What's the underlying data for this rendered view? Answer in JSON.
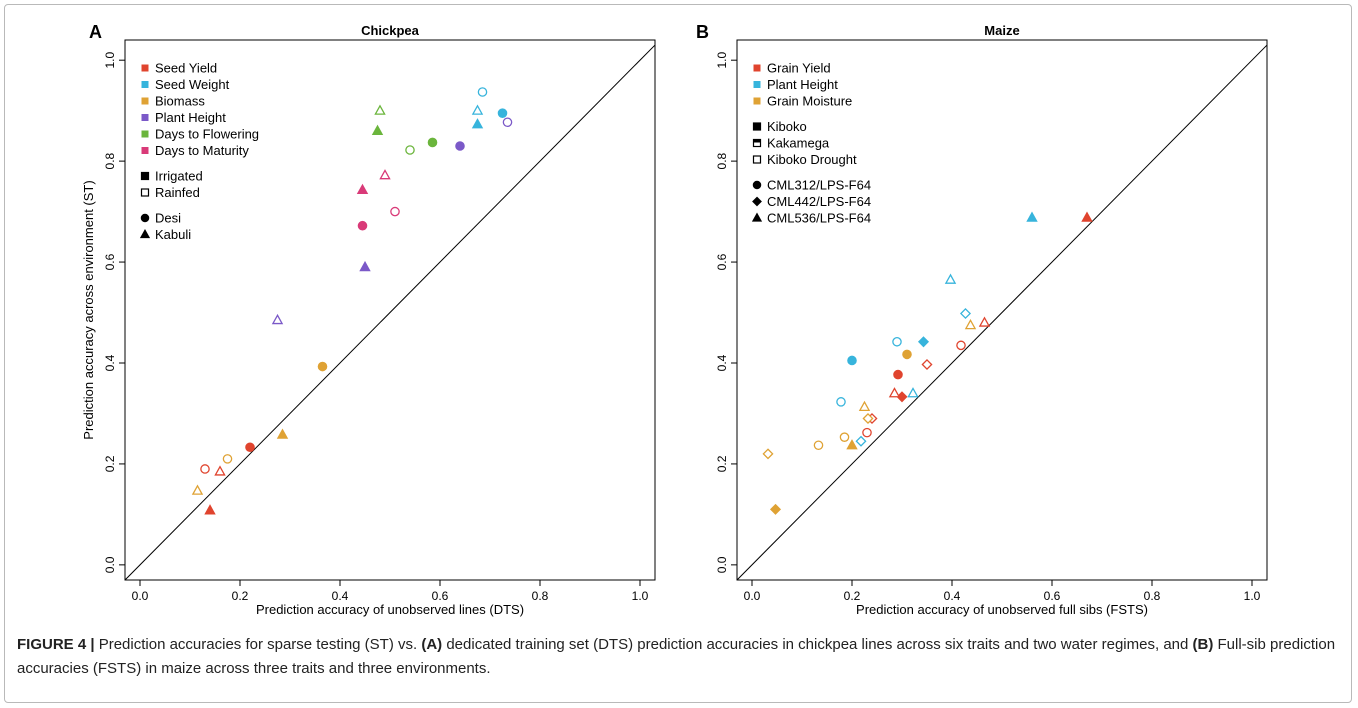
{
  "caption": {
    "label": "FIGURE 4 |",
    "t1": " Prediction accuracies for sparse testing (ST) vs. ",
    "b1": "(A)",
    "t2": " dedicated training set (DTS) prediction accuracies in chickpea lines across six traits and two water regimes, and ",
    "b2": "(B)",
    "t3": " Full-sib prediction accuracies (FSTS) in maize across three traits and three environments."
  },
  "chart_data": [
    {
      "type": "scatter",
      "panel_label": "A",
      "title": "Chickpea",
      "xlabel": "Prediction accuracy of unobserved lines (DTS)",
      "ylabel": "Prediction accuracy across environment (ST)",
      "xlim": [
        -0.03,
        1.03
      ],
      "ylim": [
        -0.03,
        1.04
      ],
      "xticks": [
        "0.0",
        "0.2",
        "0.4",
        "0.6",
        "0.8",
        "1.0"
      ],
      "yticks": [
        "0.0",
        "0.2",
        "0.4",
        "0.6",
        "0.8",
        "1.0"
      ],
      "reference_line": "y = x",
      "grid": false,
      "legend_position": "top-left",
      "legend": [
        {
          "label": "Seed Yield",
          "kind": "color",
          "color": "#e0442e"
        },
        {
          "label": "Seed Weight",
          "kind": "color",
          "color": "#37b4dc"
        },
        {
          "label": "Biomass",
          "kind": "color",
          "color": "#dfa234"
        },
        {
          "label": "Plant Height",
          "kind": "color",
          "color": "#7b59c8"
        },
        {
          "label": "Days to Flowering",
          "kind": "color",
          "color": "#6bb53c"
        },
        {
          "label": "Days to Maturity",
          "kind": "color",
          "color": "#d93a78"
        },
        {
          "label": "",
          "kind": "gap"
        },
        {
          "label": "Irrigated",
          "kind": "fill",
          "shape": "square",
          "filled": true
        },
        {
          "label": "Rainfed",
          "kind": "fill",
          "shape": "square",
          "filled": false
        },
        {
          "label": "",
          "kind": "gap"
        },
        {
          "label": "Desi",
          "kind": "shape",
          "shape": "circle",
          "filled": true
        },
        {
          "label": "Kabuli",
          "kind": "shape",
          "shape": "triangle",
          "filled": true
        }
      ],
      "points": [
        {
          "x": 0.13,
          "y": 0.19,
          "color": "#e0442e",
          "shape": "circle",
          "filled": false
        },
        {
          "x": 0.22,
          "y": 0.233,
          "color": "#e0442e",
          "shape": "circle",
          "filled": true
        },
        {
          "x": 0.16,
          "y": 0.185,
          "color": "#e0442e",
          "shape": "triangle",
          "filled": false
        },
        {
          "x": 0.14,
          "y": 0.108,
          "color": "#e0442e",
          "shape": "triangle",
          "filled": true
        },
        {
          "x": 0.685,
          "y": 0.937,
          "color": "#37b4dc",
          "shape": "circle",
          "filled": false
        },
        {
          "x": 0.725,
          "y": 0.895,
          "color": "#37b4dc",
          "shape": "circle",
          "filled": true
        },
        {
          "x": 0.675,
          "y": 0.9,
          "color": "#37b4dc",
          "shape": "triangle",
          "filled": false
        },
        {
          "x": 0.675,
          "y": 0.873,
          "color": "#37b4dc",
          "shape": "triangle",
          "filled": true
        },
        {
          "x": 0.175,
          "y": 0.21,
          "color": "#dfa234",
          "shape": "circle",
          "filled": false
        },
        {
          "x": 0.365,
          "y": 0.393,
          "color": "#dfa234",
          "shape": "circle",
          "filled": true
        },
        {
          "x": 0.115,
          "y": 0.147,
          "color": "#dfa234",
          "shape": "triangle",
          "filled": false
        },
        {
          "x": 0.285,
          "y": 0.258,
          "color": "#dfa234",
          "shape": "triangle",
          "filled": true
        },
        {
          "x": 0.735,
          "y": 0.877,
          "color": "#7b59c8",
          "shape": "circle",
          "filled": false
        },
        {
          "x": 0.64,
          "y": 0.83,
          "color": "#7b59c8",
          "shape": "circle",
          "filled": true
        },
        {
          "x": 0.275,
          "y": 0.485,
          "color": "#7b59c8",
          "shape": "triangle",
          "filled": false
        },
        {
          "x": 0.45,
          "y": 0.59,
          "color": "#7b59c8",
          "shape": "triangle",
          "filled": true
        },
        {
          "x": 0.54,
          "y": 0.822,
          "color": "#6bb53c",
          "shape": "circle",
          "filled": false
        },
        {
          "x": 0.585,
          "y": 0.837,
          "color": "#6bb53c",
          "shape": "circle",
          "filled": true
        },
        {
          "x": 0.48,
          "y": 0.9,
          "color": "#6bb53c",
          "shape": "triangle",
          "filled": false
        },
        {
          "x": 0.475,
          "y": 0.86,
          "color": "#6bb53c",
          "shape": "triangle",
          "filled": true
        },
        {
          "x": 0.51,
          "y": 0.7,
          "color": "#d93a78",
          "shape": "circle",
          "filled": false
        },
        {
          "x": 0.445,
          "y": 0.672,
          "color": "#d93a78",
          "shape": "circle",
          "filled": true
        },
        {
          "x": 0.49,
          "y": 0.772,
          "color": "#d93a78",
          "shape": "triangle",
          "filled": false
        },
        {
          "x": 0.445,
          "y": 0.743,
          "color": "#d93a78",
          "shape": "triangle",
          "filled": true
        }
      ]
    },
    {
      "type": "scatter",
      "panel_label": "B",
      "title": "Maize",
      "xlabel": "Prediction accuracy of unobserved full sibs (FSTS)",
      "ylabel": "",
      "xlim": [
        -0.03,
        1.03
      ],
      "ylim": [
        -0.03,
        1.04
      ],
      "xticks": [
        "0.0",
        "0.2",
        "0.4",
        "0.6",
        "0.8",
        "1.0"
      ],
      "yticks": [
        "0.0",
        "0.2",
        "0.4",
        "0.6",
        "0.8",
        "1.0"
      ],
      "reference_line": "y = x",
      "grid": false,
      "legend_position": "top-left",
      "legend": [
        {
          "label": "Grain Yield",
          "kind": "color",
          "color": "#e0442e"
        },
        {
          "label": "Plant Height",
          "kind": "color",
          "color": "#37b4dc"
        },
        {
          "label": "Grain Moisture",
          "kind": "color",
          "color": "#dfa234"
        },
        {
          "label": "",
          "kind": "gap"
        },
        {
          "label": "Kiboko",
          "kind": "fill",
          "shape": "square",
          "filled": true
        },
        {
          "label": "Kakamega",
          "kind": "fill",
          "shape": "square",
          "filled": "half"
        },
        {
          "label": "Kiboko Drought",
          "kind": "fill",
          "shape": "square",
          "filled": false
        },
        {
          "label": "",
          "kind": "gap"
        },
        {
          "label": "CML312/LPS-F64",
          "kind": "shape",
          "shape": "circle",
          "filled": true
        },
        {
          "label": "CML442/LPS-F64",
          "kind": "shape",
          "shape": "diamond",
          "filled": true
        },
        {
          "label": "CML536/LPS-F64",
          "kind": "shape",
          "shape": "triangle",
          "filled": true
        }
      ],
      "points": [
        {
          "x": 0.292,
          "y": 0.377,
          "color": "#e0442e",
          "shape": "circle",
          "filled": true
        },
        {
          "x": 0.418,
          "y": 0.435,
          "color": "#e0442e",
          "shape": "circle",
          "filled": false
        },
        {
          "x": 0.23,
          "y": 0.262,
          "color": "#e0442e",
          "shape": "circle",
          "filled": false
        },
        {
          "x": 0.3,
          "y": 0.333,
          "color": "#e0442e",
          "shape": "diamond",
          "filled": true
        },
        {
          "x": 0.35,
          "y": 0.397,
          "color": "#e0442e",
          "shape": "diamond",
          "filled": false
        },
        {
          "x": 0.24,
          "y": 0.29,
          "color": "#e0442e",
          "shape": "diamond",
          "filled": false
        },
        {
          "x": 0.67,
          "y": 0.688,
          "color": "#e0442e",
          "shape": "triangle",
          "filled": true
        },
        {
          "x": 0.465,
          "y": 0.48,
          "color": "#e0442e",
          "shape": "triangle",
          "filled": false
        },
        {
          "x": 0.285,
          "y": 0.34,
          "color": "#e0442e",
          "shape": "triangle",
          "filled": false
        },
        {
          "x": 0.2,
          "y": 0.405,
          "color": "#37b4dc",
          "shape": "circle",
          "filled": true
        },
        {
          "x": 0.29,
          "y": 0.442,
          "color": "#37b4dc",
          "shape": "circle",
          "filled": false
        },
        {
          "x": 0.178,
          "y": 0.323,
          "color": "#37b4dc",
          "shape": "circle",
          "filled": false
        },
        {
          "x": 0.343,
          "y": 0.442,
          "color": "#37b4dc",
          "shape": "diamond",
          "filled": true
        },
        {
          "x": 0.427,
          "y": 0.498,
          "color": "#37b4dc",
          "shape": "diamond",
          "filled": false
        },
        {
          "x": 0.218,
          "y": 0.245,
          "color": "#37b4dc",
          "shape": "diamond",
          "filled": false
        },
        {
          "x": 0.56,
          "y": 0.688,
          "color": "#37b4dc",
          "shape": "triangle",
          "filled": true
        },
        {
          "x": 0.397,
          "y": 0.565,
          "color": "#37b4dc",
          "shape": "triangle",
          "filled": false
        },
        {
          "x": 0.322,
          "y": 0.34,
          "color": "#37b4dc",
          "shape": "triangle",
          "filled": false
        },
        {
          "x": 0.31,
          "y": 0.417,
          "color": "#dfa234",
          "shape": "circle",
          "filled": true
        },
        {
          "x": 0.185,
          "y": 0.253,
          "color": "#dfa234",
          "shape": "circle",
          "filled": false
        },
        {
          "x": 0.133,
          "y": 0.237,
          "color": "#dfa234",
          "shape": "circle",
          "filled": false
        },
        {
          "x": 0.047,
          "y": 0.11,
          "color": "#dfa234",
          "shape": "diamond",
          "filled": true
        },
        {
          "x": 0.032,
          "y": 0.22,
          "color": "#dfa234",
          "shape": "diamond",
          "filled": false
        },
        {
          "x": 0.232,
          "y": 0.29,
          "color": "#dfa234",
          "shape": "diamond",
          "filled": false
        },
        {
          "x": 0.2,
          "y": 0.237,
          "color": "#dfa234",
          "shape": "triangle",
          "filled": true
        },
        {
          "x": 0.437,
          "y": 0.475,
          "color": "#dfa234",
          "shape": "triangle",
          "filled": false
        },
        {
          "x": 0.225,
          "y": 0.313,
          "color": "#dfa234",
          "shape": "triangle",
          "filled": false
        }
      ]
    }
  ]
}
